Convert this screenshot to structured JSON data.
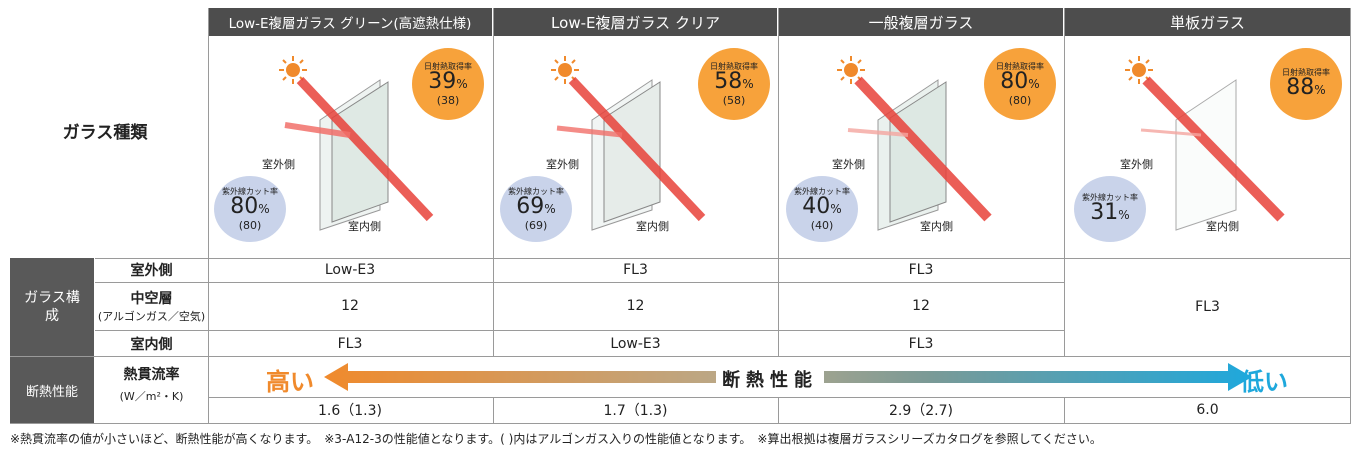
{
  "columns": [
    {
      "header": "Low-E複層ガラス グリーン(高遮熱仕様)",
      "solar_label": "日射熱取得率",
      "solar_value": "39",
      "solar_unit": "%",
      "solar_sub": "(38)",
      "uv_label": "紫外線カット率",
      "uv_value": "80",
      "uv_unit": "%",
      "uv_sub": "(80)",
      "outside": "室外側",
      "inside": "室内側",
      "comp_outer": "Low-E3",
      "comp_air": "12",
      "comp_inner": "FL3",
      "u_value": "1.6（1.3)"
    },
    {
      "header": "Low-E複層ガラス クリア",
      "solar_label": "日射熱取得率",
      "solar_value": "58",
      "solar_unit": "%",
      "solar_sub": "(58)",
      "uv_label": "紫外線カット率",
      "uv_value": "69",
      "uv_unit": "%",
      "uv_sub": "(69)",
      "outside": "室外側",
      "inside": "室内側",
      "comp_outer": "FL3",
      "comp_air": "12",
      "comp_inner": "Low-E3",
      "u_value": "1.7（1.3)"
    },
    {
      "header": "一般複層ガラス",
      "solar_label": "日射熱取得率",
      "solar_value": "80",
      "solar_unit": "%",
      "solar_sub": "(80)",
      "uv_label": "紫外線カット率",
      "uv_value": "40",
      "uv_unit": "%",
      "uv_sub": "(40)",
      "outside": "室外側",
      "inside": "室内側",
      "comp_outer": "FL3",
      "comp_air": "12",
      "comp_inner": "FL3",
      "u_value": "2.9（2.7)"
    },
    {
      "header": "単板ガラス",
      "solar_label": "日射熱取得率",
      "solar_value": "88",
      "solar_unit": "%",
      "solar_sub": "",
      "uv_label": "紫外線カット率",
      "uv_value": "31",
      "uv_unit": "%",
      "uv_sub": "",
      "outside": "室外側",
      "inside": "室内側",
      "comp_merged": "FL3",
      "u_value": "6.0"
    }
  ],
  "row_labels": {
    "glass_type": "ガラス種類",
    "composition_group": "ガラス構成",
    "outer": "室外側",
    "air": "中空層",
    "air_sub": "(アルゴンガス／空気)",
    "inner": "室内側",
    "insulation_group": "断熱性能",
    "u_title": "熱貫流率",
    "u_unit": "(W／m²・K)"
  },
  "insulation_bar": {
    "high": "高い",
    "center": "断熱性能",
    "low": "低い",
    "color_high": "#f08a2c",
    "color_low": "#1ea8dc"
  },
  "footnote": "※熱貫流率の値が小さいほど、断熱性能が高くなります。　※3-A12-3の性能値となります。( )内はアルゴンガス入りの性能値となります。　※算出根拠は複層ガラスシリーズカタログを参照してください。"
}
